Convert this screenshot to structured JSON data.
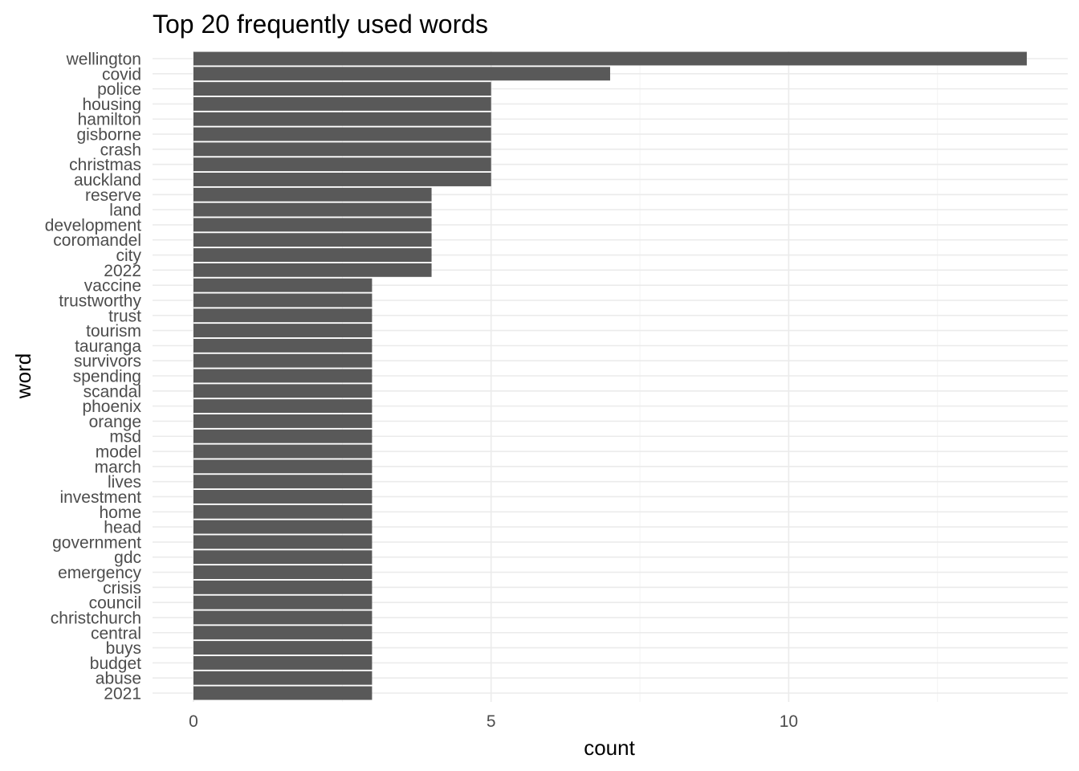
{
  "chart_data": {
    "type": "bar",
    "orientation": "horizontal",
    "title": "Top 20 frequently used words",
    "xlabel": "count",
    "ylabel": "word",
    "xlim": [
      0,
      14
    ],
    "xticks": [
      0,
      5,
      10
    ],
    "categories": [
      "wellington",
      "covid",
      "police",
      "housing",
      "hamilton",
      "gisborne",
      "crash",
      "christmas",
      "auckland",
      "reserve",
      "land",
      "development",
      "coromandel",
      "city",
      "2022",
      "vaccine",
      "trustworthy",
      "trust",
      "tourism",
      "tauranga",
      "survivors",
      "spending",
      "scandal",
      "phoenix",
      "orange",
      "msd",
      "model",
      "march",
      "lives",
      "investment",
      "home",
      "head",
      "government",
      "gdc",
      "emergency",
      "crisis",
      "council",
      "christchurch",
      "central",
      "buys",
      "budget",
      "abuse",
      "2021"
    ],
    "values": [
      14,
      7,
      5,
      5,
      5,
      5,
      5,
      5,
      5,
      4,
      4,
      4,
      4,
      4,
      4,
      3,
      3,
      3,
      3,
      3,
      3,
      3,
      3,
      3,
      3,
      3,
      3,
      3,
      3,
      3,
      3,
      3,
      3,
      3,
      3,
      3,
      3,
      3,
      3,
      3,
      3,
      3,
      3
    ],
    "bar_color": "#595959",
    "grid": true
  }
}
